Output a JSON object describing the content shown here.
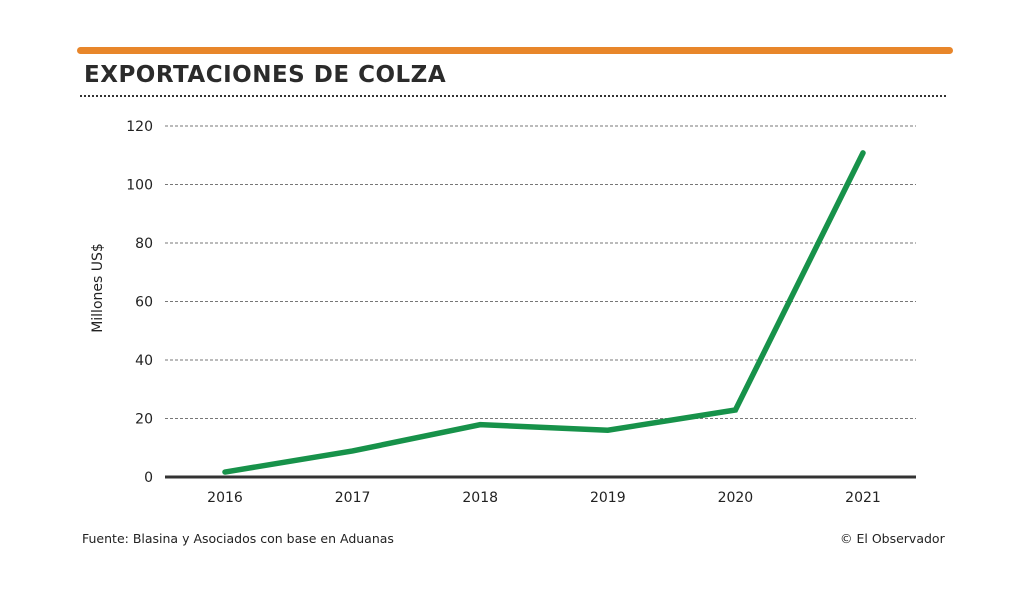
{
  "chart_data": {
    "type": "line",
    "title": "EXPORTACIONES DE COLZA",
    "xlabel": "",
    "ylabel": "Millones US$",
    "categories": [
      "2016",
      "2017",
      "2018",
      "2019",
      "2020",
      "2021"
    ],
    "series": [
      {
        "name": "Exportaciones de colza",
        "values": [
          1.7,
          8.9,
          17.9,
          16,
          22.9,
          110.8
        ],
        "color": "#17924a"
      }
    ],
    "ylim": [
      0,
      120
    ],
    "yticks": [
      0,
      20,
      40,
      60,
      80,
      100,
      120
    ],
    "grid": true,
    "legend": "none"
  },
  "footer": {
    "source": "Fuente: Blasina y Asociados con base en Aduanas",
    "credit": "© El Observador"
  },
  "colors": {
    "accent": "#e8862a",
    "line": "#17924a"
  }
}
